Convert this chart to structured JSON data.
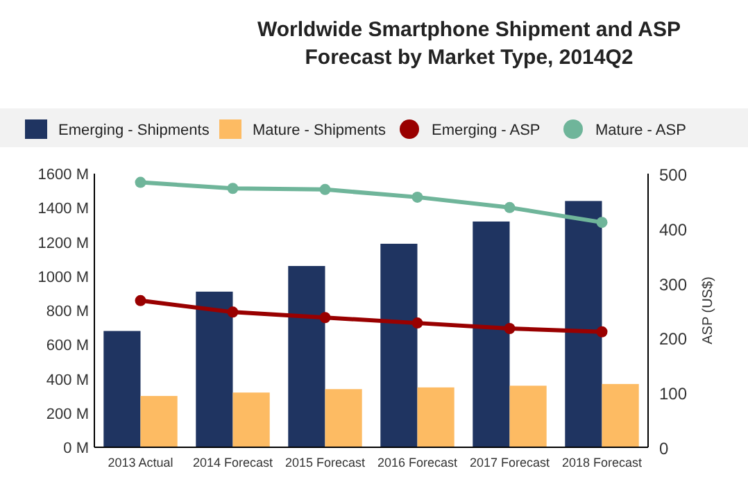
{
  "chart_data": {
    "type": "bar",
    "title": "Worldwide Smartphone Shipment and ASP\nForecast by Market Type, 2014Q2",
    "y2label": "ASP (US$)",
    "categories": [
      "2013 Actual",
      "2014 Forecast",
      "2015 Forecast",
      "2016 Forecast",
      "2017 Forecast",
      "2018 Forecast"
    ],
    "series": [
      {
        "name": "Emerging - Shipments",
        "color": "#1f3461",
        "values": [
          680,
          910,
          1060,
          1190,
          1320,
          1440
        ]
      },
      {
        "name": "Mature - Shipments",
        "color": "#fdbb63",
        "values": [
          300,
          320,
          340,
          350,
          360,
          370
        ]
      },
      {
        "name": "Emerging - ASP",
        "type": "line",
        "axis": "y2",
        "color": "#990000",
        "values": [
          268,
          247,
          237,
          227,
          217,
          211
        ]
      },
      {
        "name": "Mature - ASP",
        "type": "line",
        "axis": "y2",
        "color": "#6fb59a",
        "values": [
          484,
          473,
          471,
          457,
          438,
          411
        ]
      }
    ],
    "ylim": [
      0,
      1600
    ],
    "yticks": [
      {
        "value": 0,
        "label": "0 M"
      },
      {
        "value": 200,
        "label": "200 M"
      },
      {
        "value": 400,
        "label": "400 M"
      },
      {
        "value": 600,
        "label": "600 M"
      },
      {
        "value": 800,
        "label": "800 M"
      },
      {
        "value": 1000,
        "label": "1000 M"
      },
      {
        "value": 1200,
        "label": "1200 M"
      },
      {
        "value": 1400,
        "label": "1400 M"
      },
      {
        "value": 1600,
        "label": "1600 M"
      }
    ],
    "y2lim": [
      0,
      500
    ],
    "y2ticks": [
      0,
      100,
      200,
      300,
      400,
      500
    ],
    "legend": "top",
    "marker": "circle",
    "line_style": "solid",
    "grid": false
  }
}
